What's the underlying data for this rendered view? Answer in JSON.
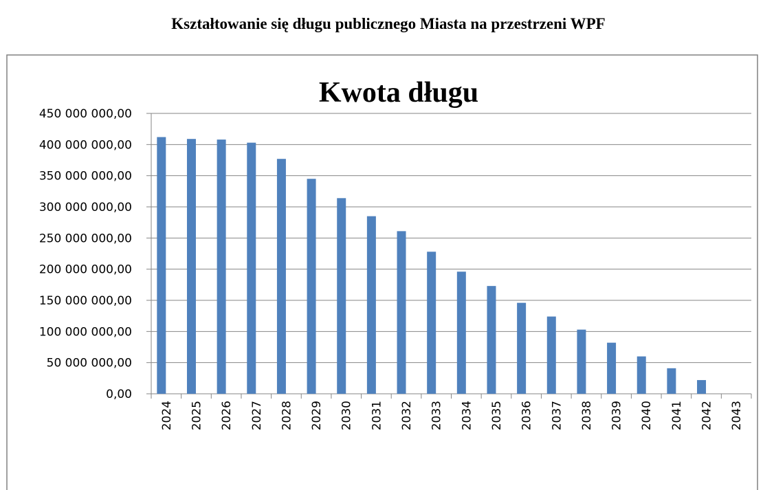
{
  "heading": "Kształtowanie się długu publicznego Miasta na przestrzeni WPF",
  "chart_data": {
    "type": "bar",
    "title": "Kwota długu",
    "categories": [
      "2024",
      "2025",
      "2026",
      "2027",
      "2028",
      "2029",
      "2030",
      "2031",
      "2032",
      "2033",
      "2034",
      "2035",
      "2036",
      "2037",
      "2038",
      "2039",
      "2040",
      "2041",
      "2042",
      "2043"
    ],
    "values": [
      412000000,
      409000000,
      408000000,
      403000000,
      377000000,
      345000000,
      314000000,
      285000000,
      261000000,
      228000000,
      196000000,
      173000000,
      146000000,
      124000000,
      103000000,
      82000000,
      60000000,
      41000000,
      22000000,
      0
    ],
    "color": "#4f81bd",
    "ylim": [
      0,
      450000000
    ],
    "yticks": [
      {
        "value": 0,
        "label": "0,00"
      },
      {
        "value": 50000000,
        "label": "50 000 000,00"
      },
      {
        "value": 100000000,
        "label": "100 000 000,00"
      },
      {
        "value": 150000000,
        "label": "150 000 000,00"
      },
      {
        "value": 200000000,
        "label": "200 000 000,00"
      },
      {
        "value": 250000000,
        "label": "250 000 000,00"
      },
      {
        "value": 300000000,
        "label": "300 000 000,00"
      },
      {
        "value": 350000000,
        "label": "350 000 000,00"
      },
      {
        "value": 400000000,
        "label": "400 000 000,00"
      },
      {
        "value": 450000000,
        "label": "450 000 000,00"
      }
    ],
    "grid": true
  }
}
